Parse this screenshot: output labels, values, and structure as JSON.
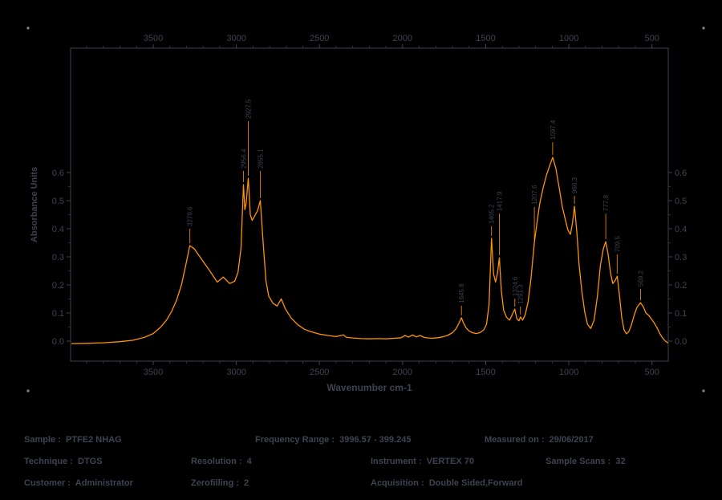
{
  "colors": {
    "background": "#000000",
    "spectrum": "#ff9300",
    "text": "#3d4350",
    "corner_marks": "#888888"
  },
  "chart_data": {
    "type": "line",
    "title": "",
    "xlabel": "Wavenumber cm-1",
    "ylabel": "Absorbance Units",
    "x_range": [
      3997,
      402
    ],
    "x_ticks": [
      3500,
      3000,
      2500,
      2000,
      1500,
      1000,
      500
    ],
    "y_ticks": [
      0.0,
      0.1,
      0.2,
      0.3,
      0.4,
      0.5,
      0.6
    ],
    "legend": "none",
    "grid": false,
    "series": [
      {
        "name": "absorbance-spectrum",
        "points": [
          [
            3990,
            -0.009
          ],
          [
            3900,
            -0.008
          ],
          [
            3800,
            -0.006
          ],
          [
            3700,
            -0.002
          ],
          [
            3620,
            0.003
          ],
          [
            3550,
            0.014
          ],
          [
            3500,
            0.027
          ],
          [
            3455,
            0.05
          ],
          [
            3420,
            0.075
          ],
          [
            3390,
            0.105
          ],
          [
            3360,
            0.145
          ],
          [
            3330,
            0.2
          ],
          [
            3305,
            0.268
          ],
          [
            3280,
            0.34
          ],
          [
            3252,
            0.328
          ],
          [
            3210,
            0.292
          ],
          [
            3160,
            0.25
          ],
          [
            3115,
            0.21
          ],
          [
            3078,
            0.228
          ],
          [
            3040,
            0.205
          ],
          [
            3010,
            0.213
          ],
          [
            2990,
            0.245
          ],
          [
            2972,
            0.33
          ],
          [
            2957,
            0.557
          ],
          [
            2949,
            0.468
          ],
          [
            2941,
            0.49
          ],
          [
            2928,
            0.58
          ],
          [
            2916,
            0.45
          ],
          [
            2905,
            0.43
          ],
          [
            2890,
            0.445
          ],
          [
            2872,
            0.465
          ],
          [
            2856,
            0.5
          ],
          [
            2840,
            0.36
          ],
          [
            2822,
            0.215
          ],
          [
            2805,
            0.16
          ],
          [
            2780,
            0.135
          ],
          [
            2755,
            0.125
          ],
          [
            2730,
            0.15
          ],
          [
            2705,
            0.115
          ],
          [
            2670,
            0.082
          ],
          [
            2630,
            0.058
          ],
          [
            2590,
            0.042
          ],
          [
            2550,
            0.033
          ],
          [
            2500,
            0.025
          ],
          [
            2450,
            0.02
          ],
          [
            2400,
            0.016
          ],
          [
            2355,
            0.022
          ],
          [
            2340,
            0.014
          ],
          [
            2300,
            0.011
          ],
          [
            2250,
            0.009
          ],
          [
            2200,
            0.008
          ],
          [
            2150,
            0.009
          ],
          [
            2100,
            0.008
          ],
          [
            2050,
            0.01
          ],
          [
            2010,
            0.012
          ],
          [
            1985,
            0.02
          ],
          [
            1965,
            0.014
          ],
          [
            1940,
            0.022
          ],
          [
            1918,
            0.015
          ],
          [
            1895,
            0.02
          ],
          [
            1870,
            0.013
          ],
          [
            1845,
            0.011
          ],
          [
            1820,
            0.01
          ],
          [
            1790,
            0.012
          ],
          [
            1760,
            0.015
          ],
          [
            1730,
            0.02
          ],
          [
            1700,
            0.03
          ],
          [
            1678,
            0.045
          ],
          [
            1660,
            0.065
          ],
          [
            1646,
            0.083
          ],
          [
            1634,
            0.065
          ],
          [
            1618,
            0.047
          ],
          [
            1600,
            0.036
          ],
          [
            1580,
            0.03
          ],
          [
            1558,
            0.027
          ],
          [
            1535,
            0.03
          ],
          [
            1512,
            0.04
          ],
          [
            1495,
            0.06
          ],
          [
            1480,
            0.13
          ],
          [
            1465,
            0.366
          ],
          [
            1453,
            0.24
          ],
          [
            1441,
            0.21
          ],
          [
            1430,
            0.24
          ],
          [
            1418,
            0.297
          ],
          [
            1406,
            0.18
          ],
          [
            1392,
            0.11
          ],
          [
            1375,
            0.085
          ],
          [
            1356,
            0.075
          ],
          [
            1340,
            0.095
          ],
          [
            1325,
            0.114
          ],
          [
            1313,
            0.08
          ],
          [
            1300,
            0.072
          ],
          [
            1291,
            0.086
          ],
          [
            1278,
            0.075
          ],
          [
            1262,
            0.095
          ],
          [
            1245,
            0.14
          ],
          [
            1228,
            0.22
          ],
          [
            1208,
            0.349
          ],
          [
            1192,
            0.42
          ],
          [
            1175,
            0.49
          ],
          [
            1155,
            0.545
          ],
          [
            1135,
            0.59
          ],
          [
            1115,
            0.625
          ],
          [
            1097,
            0.654
          ],
          [
            1078,
            0.615
          ],
          [
            1058,
            0.545
          ],
          [
            1040,
            0.48
          ],
          [
            1022,
            0.435
          ],
          [
            1005,
            0.395
          ],
          [
            990,
            0.38
          ],
          [
            978,
            0.42
          ],
          [
            966,
            0.48
          ],
          [
            952,
            0.39
          ],
          [
            938,
            0.27
          ],
          [
            922,
            0.18
          ],
          [
            905,
            0.105
          ],
          [
            888,
            0.06
          ],
          [
            868,
            0.045
          ],
          [
            848,
            0.075
          ],
          [
            828,
            0.16
          ],
          [
            810,
            0.27
          ],
          [
            792,
            0.33
          ],
          [
            778,
            0.354
          ],
          [
            764,
            0.31
          ],
          [
            750,
            0.245
          ],
          [
            736,
            0.205
          ],
          [
            722,
            0.215
          ],
          [
            709,
            0.231
          ],
          [
            696,
            0.165
          ],
          [
            682,
            0.085
          ],
          [
            668,
            0.04
          ],
          [
            654,
            0.026
          ],
          [
            640,
            0.033
          ],
          [
            625,
            0.055
          ],
          [
            608,
            0.09
          ],
          [
            590,
            0.12
          ],
          [
            569,
            0.137
          ],
          [
            552,
            0.122
          ],
          [
            536,
            0.1
          ],
          [
            520,
            0.092
          ],
          [
            505,
            0.08
          ],
          [
            488,
            0.066
          ],
          [
            470,
            0.048
          ],
          [
            452,
            0.026
          ],
          [
            435,
            0.01
          ],
          [
            420,
            0.0
          ],
          [
            405,
            -0.006
          ]
        ]
      }
    ],
    "peaks": [
      {
        "wn": 3279.6,
        "a": 0.34,
        "label": "3279.6",
        "offset": 18
      },
      {
        "wn": 2956.4,
        "a": 0.557,
        "label": "2956.4",
        "offset": 14
      },
      {
        "wn": 2927.5,
        "a": 0.58,
        "label": "2927.5",
        "offset": 68
      },
      {
        "wn": 2855.1,
        "a": 0.5,
        "label": "2855.1",
        "offset": 34
      },
      {
        "wn": 1645.8,
        "a": 0.083,
        "label": "1645.8",
        "offset": 12
      },
      {
        "wn": 1465.2,
        "a": 0.366,
        "label": "1465.2",
        "offset": 12
      },
      {
        "wn": 1417.9,
        "a": 0.297,
        "label": "1417.9",
        "offset": 52
      },
      {
        "wn": 1324.6,
        "a": 0.114,
        "label": "1324.6",
        "offset": 10
      },
      {
        "wn": 1291.3,
        "a": 0.086,
        "label": "1291.3",
        "offset": 10
      },
      {
        "wn": 1207.6,
        "a": 0.349,
        "label": "1207.6",
        "offset": 42
      },
      {
        "wn": 1097.4,
        "a": 0.654,
        "label": "1097.4",
        "offset": 16
      },
      {
        "wn": 966.3,
        "a": 0.48,
        "label": "966.3",
        "offset": 10
      },
      {
        "wn": 777.8,
        "a": 0.354,
        "label": "777.8",
        "offset": 32
      },
      {
        "wn": 709.5,
        "a": 0.231,
        "label": "709.5",
        "offset": 24
      },
      {
        "wn": 569.2,
        "a": 0.137,
        "label": "569.2",
        "offset": 14
      }
    ]
  },
  "footer": {
    "sample": "Sample :  PTFE2 NHAG",
    "frequency_range": "Frequency Range :  3996.57 - 399.245",
    "measured_on": "Measured on :  29/06/2017",
    "technique": "Technique :  DTGS",
    "resolution": "Resolution :  4",
    "instrument": "Instrument :  VERTEX 70",
    "sample_scans": "Sample Scans :  32",
    "customer": "Customer :  Administrator",
    "zerofilling": "Zerofilling :  2",
    "acquisition": "Acquisition :  Double Sided,Forward"
  }
}
